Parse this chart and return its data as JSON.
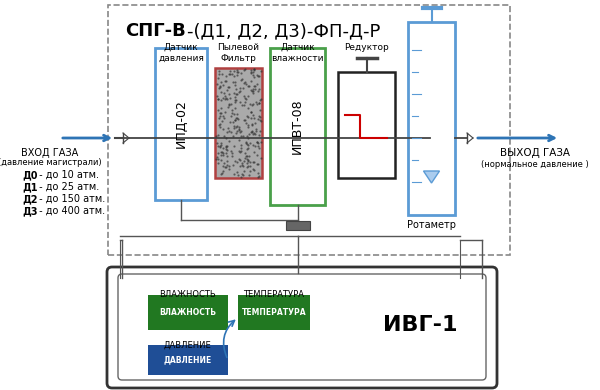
{
  "title_bold": "СПГ-В",
  "title_normal": "-(Д1, Д2, Д3)-ФП-Д-Р",
  "inlet_label": "ВХОД ГАЗА",
  "inlet_sublabel": "(давление магистрали)",
  "inlet_options": [
    [
      "Д0",
      " - до 10 атм."
    ],
    [
      "Д1",
      " - до 25 атм."
    ],
    [
      "Д2",
      " - до 150 атм."
    ],
    [
      "Д3",
      " - до 400 атм."
    ]
  ],
  "outlet_label": "ВЫХОД ГАЗА",
  "outlet_sublabel": "(нормальное давление )",
  "label_ipd": "Датчик\nдавления",
  "label_flt": "Пылевой\nФильтр",
  "label_ipvt": "Датчик\nвлажности",
  "label_red": "Редуктор",
  "label_rot": "Ротаметр",
  "name_ipd": "ИПД-02",
  "name_ipvt": "ИПВТ-08",
  "ivg_label": "ИВГ-1",
  "ch_humidity": "ВЛАЖНОСТЬ",
  "ch_temp": "ТЕМПЕРАТУРА",
  "ch_pressure": "ДАВЛЕНИЕ",
  "bg": "#ffffff",
  "c_ipd": "#5b9bd5",
  "c_flt_border": "#b04040",
  "c_flt_fill": "#aaaaaa",
  "c_ipvt": "#4aa04a",
  "c_red": "#222222",
  "c_rot": "#5b9bd5",
  "c_arrow": "#2e74b5",
  "c_green": "#217821",
  "c_blue": "#1f4e96",
  "c_line": "#555555",
  "c_dash": "#888888",
  "c_red_sig": "#cc0000"
}
